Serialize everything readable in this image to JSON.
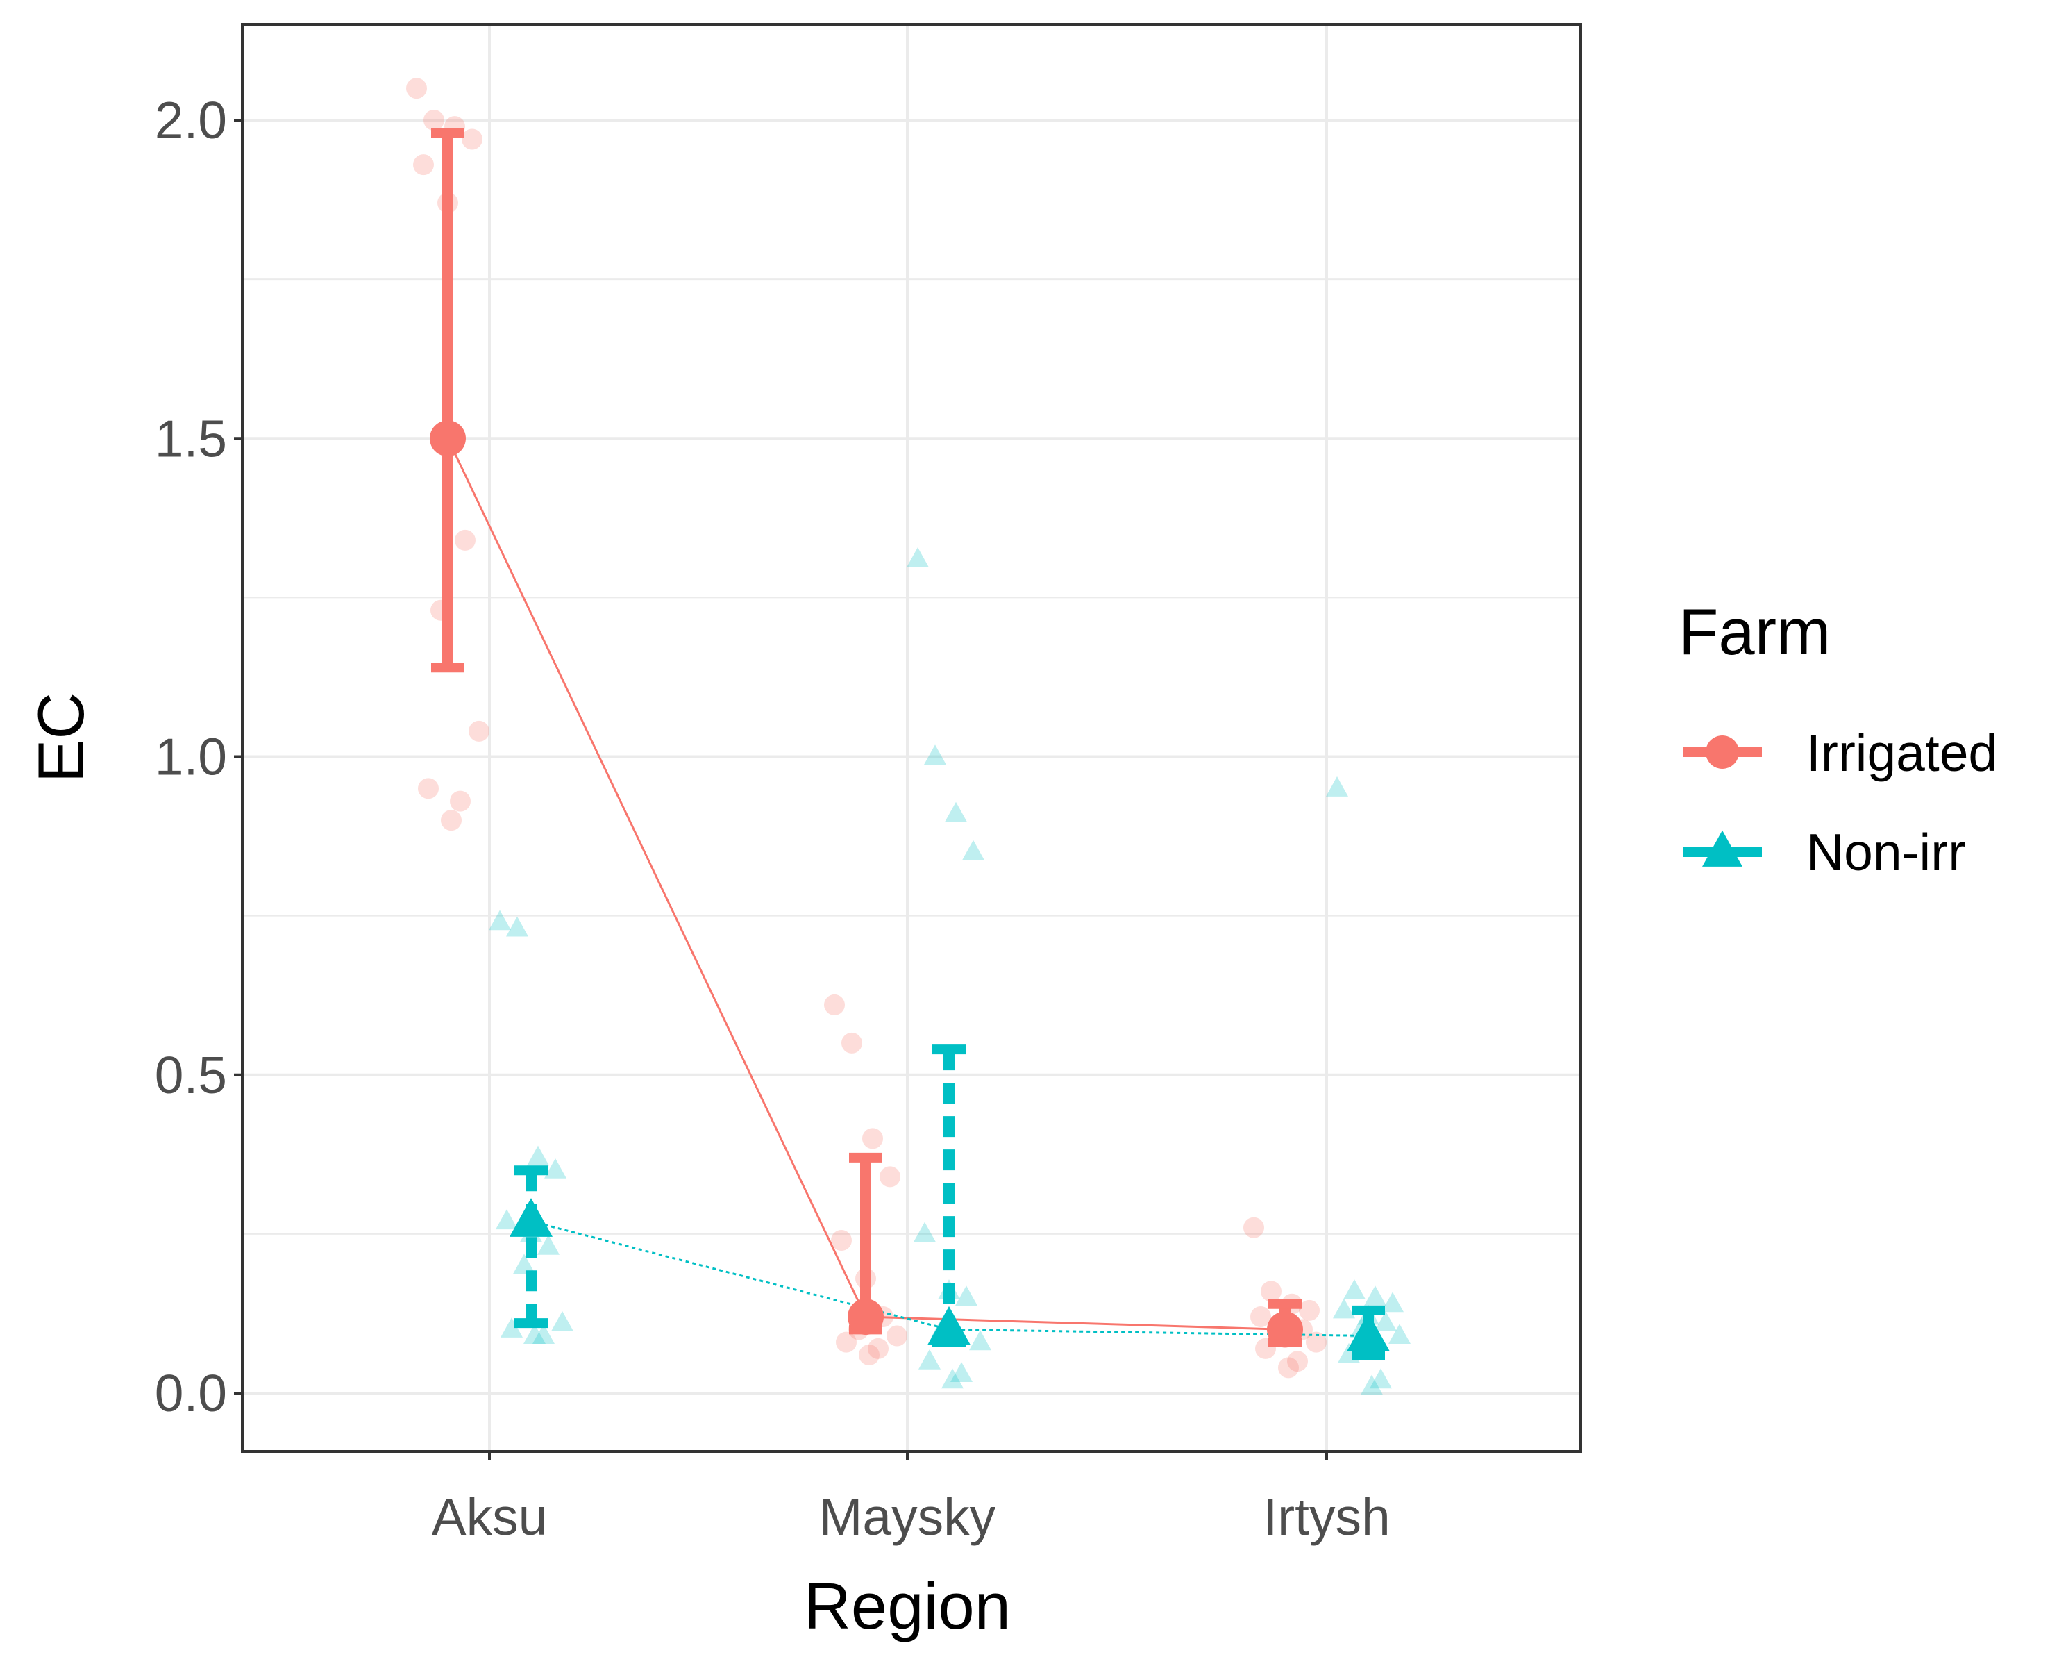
{
  "chart_data": {
    "type": "scatter",
    "subtype": "interaction-plot-with-jittered-points-and-error-bars",
    "title": "",
    "xlabel": "Region",
    "ylabel": "EC",
    "categories": [
      "Aksu",
      "Maysky",
      "Irtysh"
    ],
    "ylim": [
      -0.09,
      2.15
    ],
    "yticks": [
      0.0,
      0.5,
      1.0,
      1.5,
      2.0
    ],
    "ytick_labels": [
      "0.0",
      "0.5",
      "1.0",
      "1.5",
      "2.0"
    ],
    "grid": true,
    "legend": {
      "title": "Farm",
      "position": "right"
    },
    "series": [
      {
        "name": "Irrigated",
        "color": "#F8766D",
        "marker": "circle",
        "line": "solid",
        "means": [
          1.5,
          0.12,
          0.1
        ],
        "error_low": [
          1.14,
          0.1,
          0.08
        ],
        "error_high": [
          1.98,
          0.37,
          0.14
        ],
        "points": [
          [
            2.05,
            2.0,
            1.99,
            1.97,
            1.93,
            1.87,
            1.34,
            1.23,
            1.04,
            0.95,
            0.93,
            0.9
          ],
          [
            0.61,
            0.55,
            0.4,
            0.34,
            0.24,
            0.18,
            0.12,
            0.1,
            0.09,
            0.08,
            0.07,
            0.06
          ],
          [
            0.26,
            0.16,
            0.14,
            0.13,
            0.12,
            0.11,
            0.1,
            0.09,
            0.08,
            0.07,
            0.05,
            0.04
          ]
        ]
      },
      {
        "name": "Non-irr",
        "color": "#00BFC4",
        "marker": "triangle",
        "line": "dotted",
        "means": [
          0.27,
          0.1,
          0.09
        ],
        "error_low": [
          0.11,
          0.08,
          0.06
        ],
        "error_high": [
          0.35,
          0.54,
          0.13
        ],
        "points": [
          [
            0.74,
            0.73,
            0.37,
            0.35,
            0.27,
            0.25,
            0.23,
            0.2,
            0.11,
            0.1,
            0.09,
            0.09
          ],
          [
            1.31,
            1.0,
            0.91,
            0.85,
            0.25,
            0.16,
            0.15,
            0.1,
            0.08,
            0.05,
            0.03,
            0.02
          ],
          [
            0.95,
            0.16,
            0.15,
            0.14,
            0.13,
            0.12,
            0.11,
            0.1,
            0.09,
            0.06,
            0.02,
            0.01
          ]
        ]
      }
    ]
  }
}
